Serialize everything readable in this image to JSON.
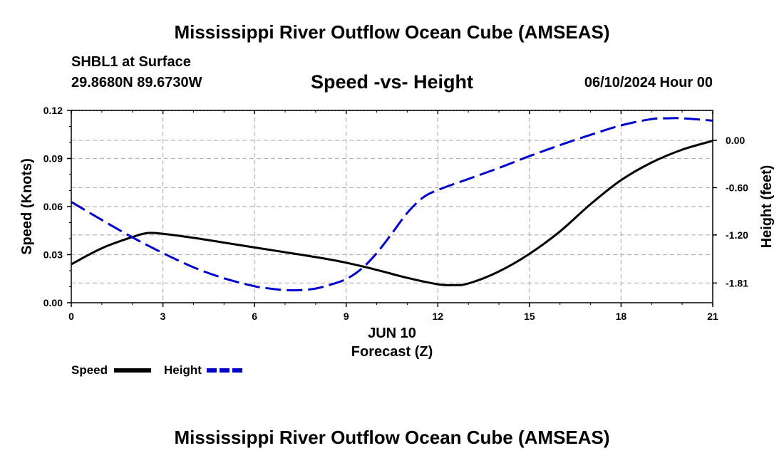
{
  "header": {
    "title": "Mississippi River Outflow Ocean Cube (AMSEAS)",
    "station": "SHBL1 at Surface",
    "coords": "29.8680N  89.6730W",
    "subtitle": "Speed -vs- Height",
    "run_time": "06/10/2024 Hour 00"
  },
  "footer": {
    "title": "Mississippi River Outflow Ocean Cube (AMSEAS)"
  },
  "legend": {
    "speed_label": "Speed",
    "height_label": "Height"
  },
  "colors": {
    "speed": "#000000",
    "height": "#0000cc",
    "grid": "#b4b4b4"
  },
  "chart_data": {
    "type": "line",
    "title": "Speed -vs- Height",
    "xlabel": "Forecast (Z)",
    "xlabel_date": "JUN 10",
    "ylabel": "Speed (Knots)",
    "y2label": "Height (feet)",
    "xlim": [
      0,
      21
    ],
    "ylim": [
      0,
      0.12
    ],
    "y2lim": [
      -2.06,
      0.38
    ],
    "x_ticks": [
      0,
      3,
      6,
      9,
      12,
      15,
      18,
      21
    ],
    "x_tick_labels": [
      "0",
      "3",
      "6",
      "9",
      "12",
      "15",
      "18",
      "21"
    ],
    "y_ticks": [
      0,
      0.03,
      0.06,
      0.09,
      0.12
    ],
    "y_tick_labels": [
      "0.00",
      "0.03",
      "0.06",
      "0.09",
      "0.12"
    ],
    "y2_ticks": [
      0.0,
      -0.6,
      -1.2,
      -1.81
    ],
    "y2_tick_labels": [
      "0.00",
      "-0.60",
      "-1.20",
      "-1.81"
    ],
    "grid": true,
    "legend_position": "bottom-left",
    "series": [
      {
        "name": "Speed",
        "axis": "left",
        "style": "solid",
        "x": [
          0,
          1,
          2,
          2.5,
          3,
          4,
          5,
          6,
          7,
          8,
          9,
          10,
          11,
          12,
          12.5,
          13,
          14,
          15,
          16,
          17,
          18,
          19,
          20,
          21
        ],
        "values": [
          0.024,
          0.034,
          0.041,
          0.0435,
          0.043,
          0.0405,
          0.0375,
          0.0345,
          0.0315,
          0.0285,
          0.025,
          0.0205,
          0.0155,
          0.0115,
          0.011,
          0.012,
          0.0195,
          0.0305,
          0.0445,
          0.0615,
          0.0765,
          0.0875,
          0.0955,
          0.101
        ]
      },
      {
        "name": "Height",
        "axis": "right",
        "style": "dashed",
        "x": [
          0,
          1,
          2,
          3,
          4,
          5,
          6,
          6.5,
          7,
          7.5,
          8,
          8.5,
          9,
          9.5,
          10,
          10.5,
          11,
          11.5,
          12,
          13,
          14,
          15,
          16,
          17,
          18,
          19,
          19.5,
          20,
          21
        ],
        "values": [
          -0.78,
          -1.01,
          -1.23,
          -1.43,
          -1.61,
          -1.75,
          -1.85,
          -1.88,
          -1.9,
          -1.9,
          -1.88,
          -1.83,
          -1.76,
          -1.63,
          -1.43,
          -1.18,
          -0.92,
          -0.73,
          -0.63,
          -0.49,
          -0.35,
          -0.2,
          -0.06,
          0.07,
          0.19,
          0.27,
          0.28,
          0.28,
          0.25
        ]
      }
    ]
  }
}
